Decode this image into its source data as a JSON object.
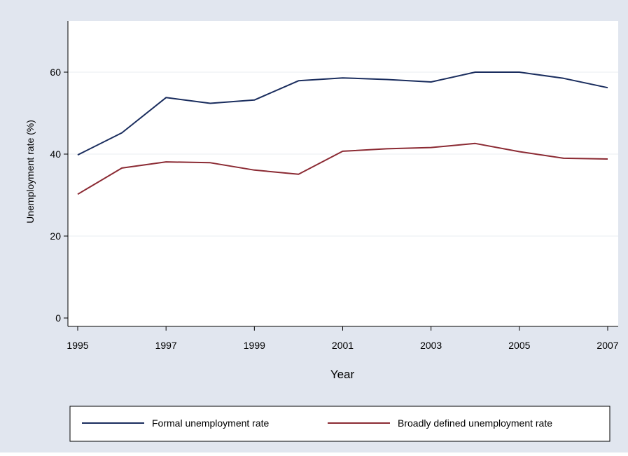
{
  "colors": {
    "outer_background": "#e1e6ef",
    "plot_background": "#ffffff",
    "gridline": "#eaeef2",
    "axis": "#000000",
    "series_formal": "#1a2d5e",
    "series_broad": "#8b2a33"
  },
  "chart_data": {
    "type": "line",
    "title": "",
    "xlabel": "Year",
    "ylabel": "Unemployment rate (%)",
    "x": [
      1995,
      1996,
      1997,
      1998,
      1999,
      2000,
      2001,
      2002,
      2003,
      2004,
      2005,
      2006,
      2007
    ],
    "xlim": [
      1995,
      2007
    ],
    "ylim": [
      0,
      72
    ],
    "x_ticks": [
      1995,
      1997,
      1999,
      2001,
      2003,
      2005,
      2007
    ],
    "x_tick_labels": [
      "1995",
      "1997",
      "1999",
      "2001",
      "2003",
      "2005",
      "2007"
    ],
    "y_ticks": [
      0,
      20,
      40,
      60
    ],
    "y_tick_labels": [
      "0",
      "20",
      "40",
      "60"
    ],
    "grid": true,
    "legend_position": "bottom",
    "series": [
      {
        "name": "Formal unemployment rate",
        "values": [
          39.8,
          45.2,
          53.8,
          52.4,
          53.2,
          57.9,
          58.6,
          58.2,
          57.6,
          60.0,
          60.0,
          58.5,
          56.2
        ]
      },
      {
        "name": "Broadly defined unemployment rate",
        "values": [
          30.2,
          36.6,
          38.1,
          37.9,
          36.1,
          35.1,
          40.7,
          41.3,
          41.6,
          42.6,
          40.6,
          39.0,
          38.8
        ]
      }
    ]
  }
}
